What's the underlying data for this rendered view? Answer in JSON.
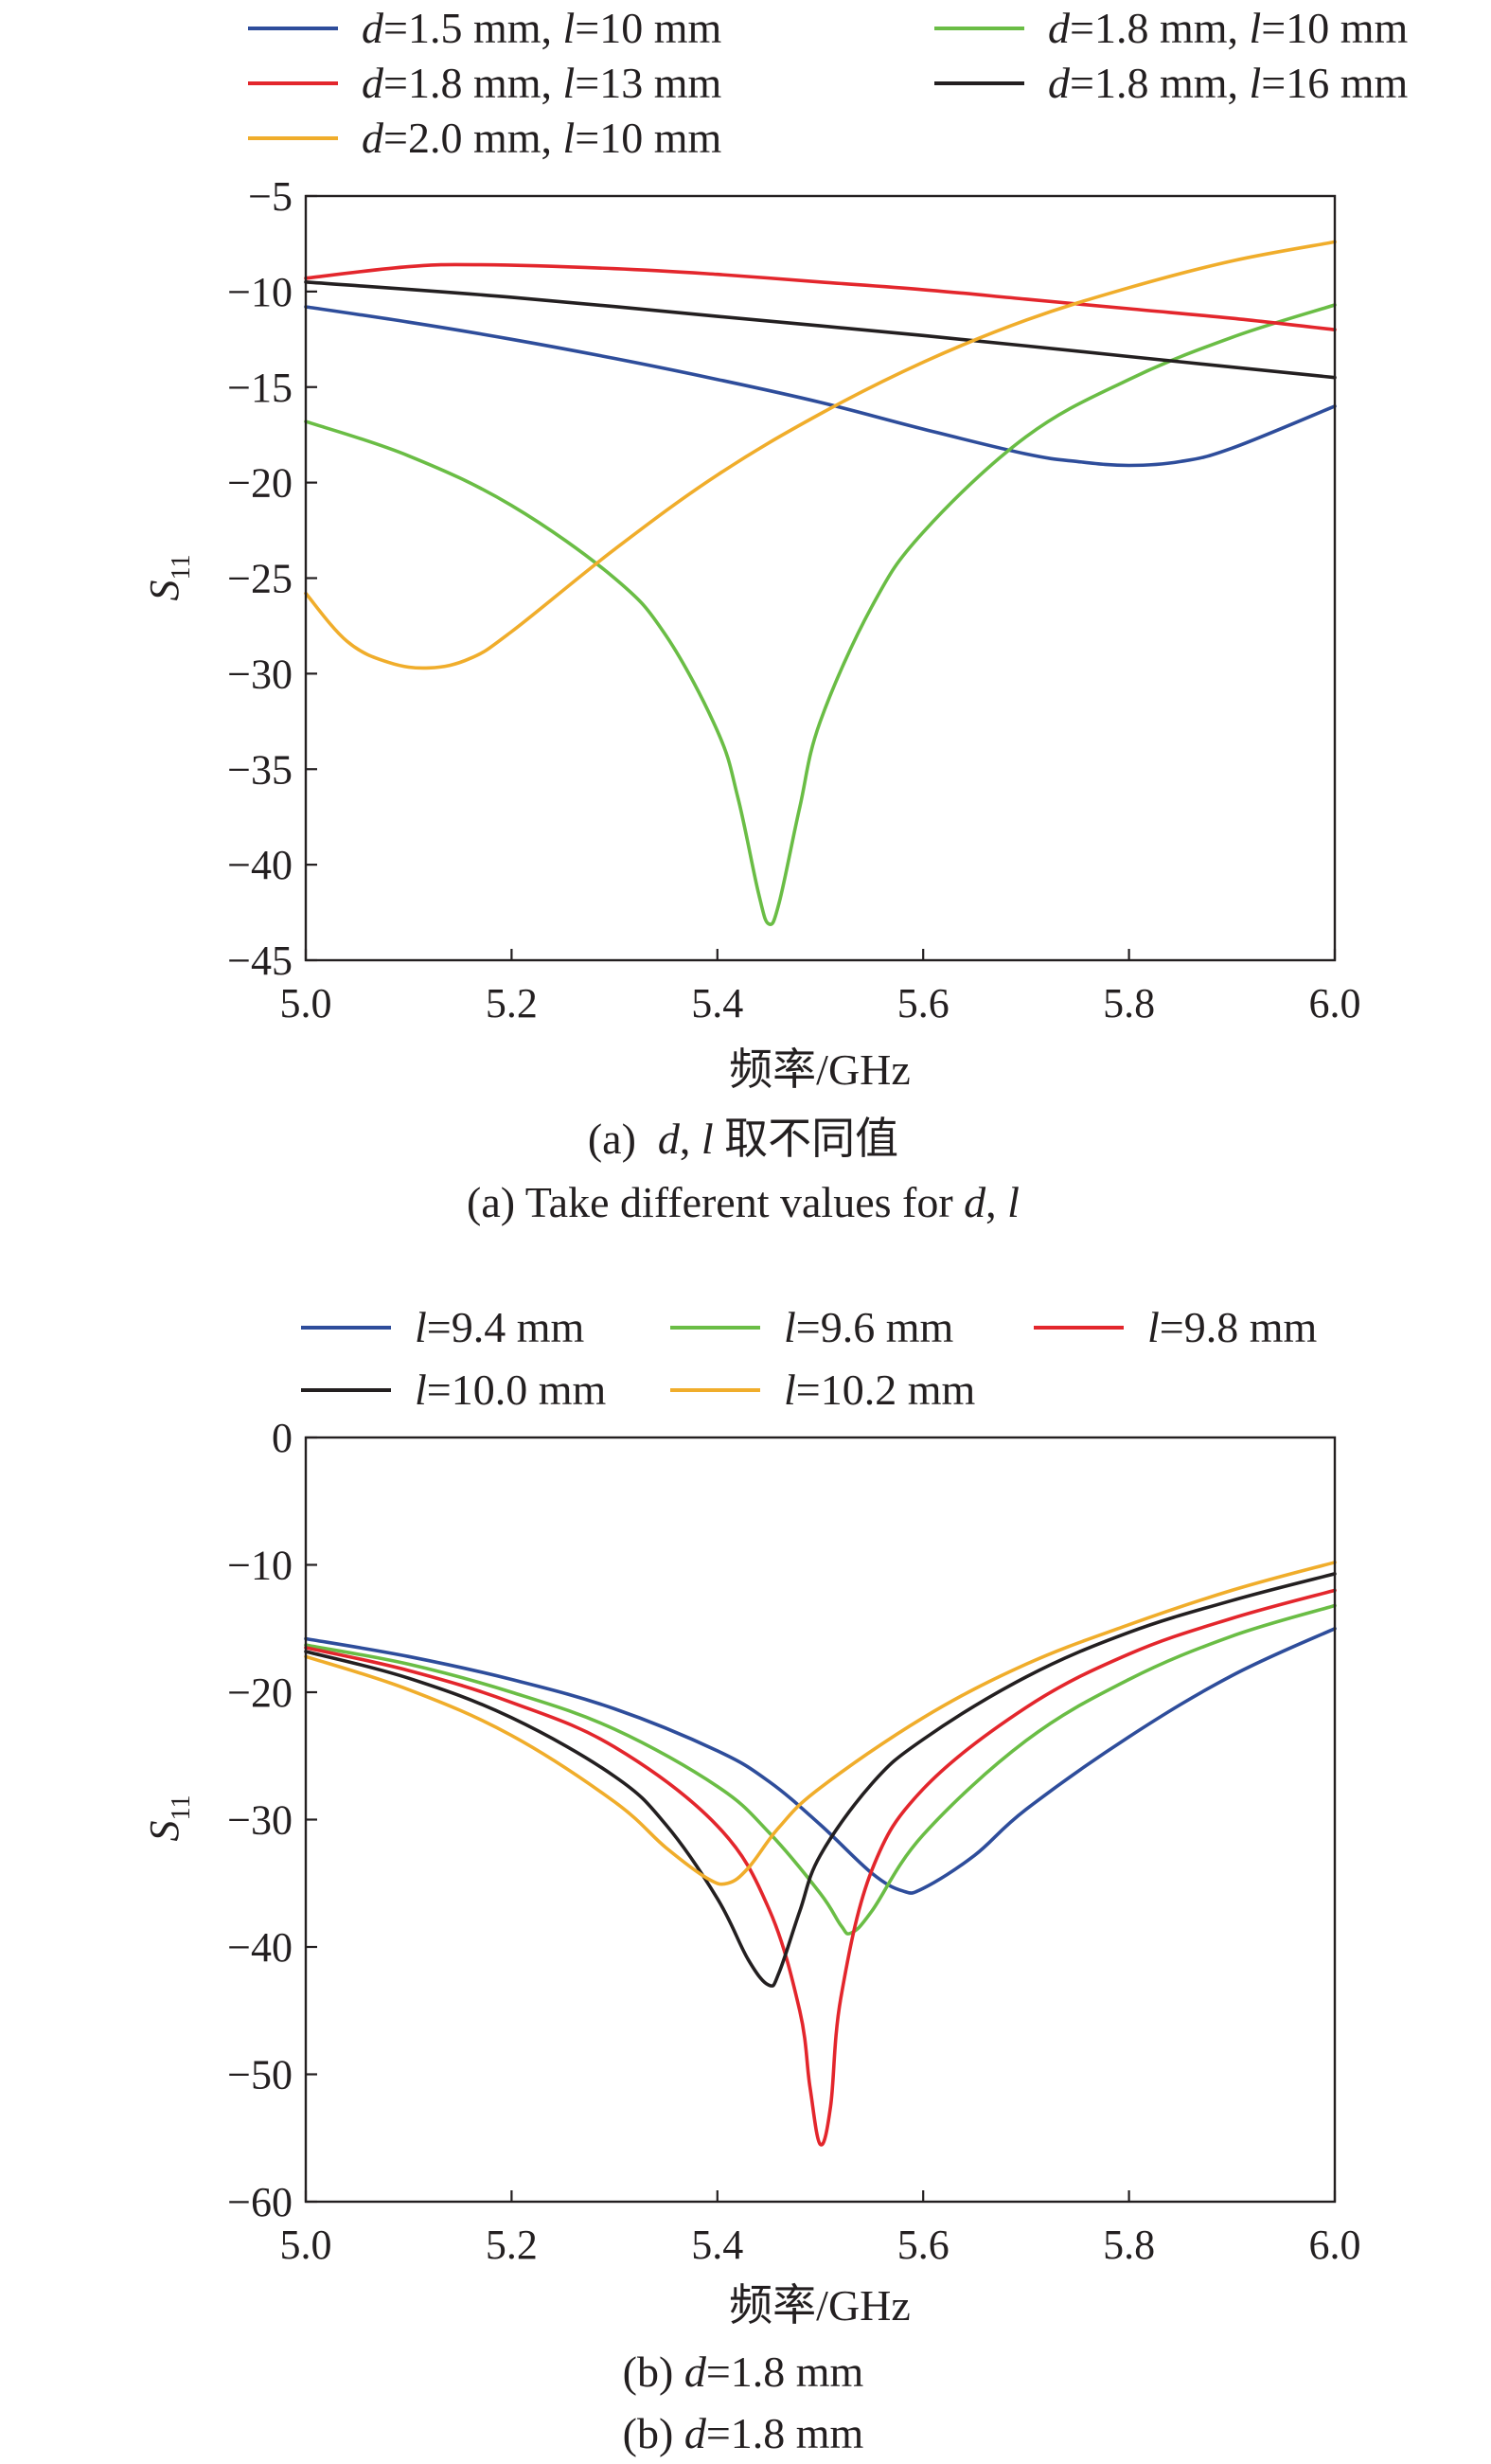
{
  "chart_data": [
    {
      "type": "line",
      "title": "",
      "xlabel": "频率/GHz",
      "ylabel": "S11",
      "xlim": [
        5.0,
        6.0
      ],
      "ylim": [
        -45,
        -5
      ],
      "xticks": [
        5.0,
        5.2,
        5.4,
        5.6,
        5.8,
        6.0
      ],
      "yticks": [
        -5,
        -10,
        -15,
        -20,
        -25,
        -30,
        -35,
        -40,
        -45
      ],
      "xtick_labels": [
        "5.0",
        "5.2",
        "5.4",
        "5.6",
        "5.8",
        "6.0"
      ],
      "ytick_labels": [
        "−5",
        "−10",
        "−15",
        "−20",
        "−25",
        "−30",
        "−35",
        "−40",
        "−45"
      ],
      "legend_position": "top",
      "caption_cn": "(a)  d, l 取不同值",
      "caption_en": "(a) Take different values for d, l",
      "series": [
        {
          "name": "d=1.5 mm, l=10 mm",
          "color": "#2e4d9b",
          "x": [
            5.0,
            5.1,
            5.2,
            5.3,
            5.4,
            5.5,
            5.6,
            5.7,
            5.75,
            5.8,
            5.85,
            5.9,
            6.0
          ],
          "y": [
            -10.8,
            -11.6,
            -12.5,
            -13.5,
            -14.6,
            -15.8,
            -17.2,
            -18.5,
            -18.9,
            -19.1,
            -18.9,
            -18.2,
            -16.0
          ]
        },
        {
          "name": "d=1.8 mm, l=10 mm",
          "color": "#6abd45",
          "x": [
            5.0,
            5.1,
            5.2,
            5.3,
            5.35,
            5.4,
            5.42,
            5.44,
            5.45,
            5.46,
            5.48,
            5.5,
            5.55,
            5.6,
            5.7,
            5.8,
            5.9,
            6.0
          ],
          "y": [
            -16.8,
            -18.6,
            -21.2,
            -25.0,
            -28.0,
            -33.0,
            -36.5,
            -41.5,
            -43.1,
            -42.0,
            -37.0,
            -32.5,
            -26.5,
            -22.6,
            -17.6,
            -14.6,
            -12.4,
            -10.7
          ]
        },
        {
          "name": "d=1.8 mm, l=13 mm",
          "color": "#e3262c",
          "x": [
            5.0,
            5.1,
            5.17,
            5.3,
            5.4,
            5.5,
            5.6,
            5.7,
            5.8,
            5.9,
            6.0
          ],
          "y": [
            -9.3,
            -8.7,
            -8.6,
            -8.8,
            -9.1,
            -9.5,
            -9.9,
            -10.4,
            -10.9,
            -11.4,
            -12.0
          ]
        },
        {
          "name": "d=1.8 mm, l=16 mm",
          "color": "#231f20",
          "x": [
            5.0,
            5.2,
            5.4,
            5.6,
            5.8,
            6.0
          ],
          "y": [
            -9.5,
            -10.3,
            -11.3,
            -12.3,
            -13.4,
            -14.5
          ]
        },
        {
          "name": "d=2.0 mm, l=10 mm",
          "color": "#f0ad2b",
          "x": [
            5.0,
            5.04,
            5.08,
            5.12,
            5.16,
            5.2,
            5.3,
            5.4,
            5.5,
            5.6,
            5.7,
            5.8,
            5.9,
            6.0
          ],
          "y": [
            -25.8,
            -28.3,
            -29.4,
            -29.7,
            -29.2,
            -27.8,
            -23.5,
            -19.6,
            -16.4,
            -13.7,
            -11.5,
            -9.8,
            -8.4,
            -7.4
          ]
        }
      ]
    },
    {
      "type": "line",
      "title": "",
      "xlabel": "频率/GHz",
      "ylabel": "S11",
      "xlim": [
        5.0,
        6.0
      ],
      "ylim": [
        -60,
        0
      ],
      "xticks": [
        5.0,
        5.2,
        5.4,
        5.6,
        5.8,
        6.0
      ],
      "yticks": [
        0,
        -10,
        -20,
        -30,
        -40,
        -50,
        -60
      ],
      "xtick_labels": [
        "5.0",
        "5.2",
        "5.4",
        "5.6",
        "5.8",
        "6.0"
      ],
      "ytick_labels": [
        "0",
        "−10",
        "−20",
        "−30",
        "−40",
        "−50",
        "−60"
      ],
      "legend_position": "top",
      "caption_cn": "(b) d=1.8 mm",
      "caption_en": "(b) d=1.8 mm",
      "series": [
        {
          "name": "l=9.4 mm",
          "color": "#2e4d9b",
          "x": [
            5.0,
            5.1,
            5.2,
            5.3,
            5.4,
            5.45,
            5.5,
            5.55,
            5.58,
            5.6,
            5.65,
            5.7,
            5.8,
            5.9,
            6.0
          ],
          "y": [
            -15.8,
            -17.2,
            -19.0,
            -21.3,
            -24.6,
            -27.0,
            -30.4,
            -34.2,
            -35.6,
            -35.4,
            -32.8,
            -29.2,
            -23.5,
            -18.7,
            -15.0
          ]
        },
        {
          "name": "l=9.6 mm",
          "color": "#6abd45",
          "x": [
            5.0,
            5.1,
            5.2,
            5.3,
            5.4,
            5.45,
            5.5,
            5.52,
            5.53,
            5.55,
            5.6,
            5.7,
            5.8,
            5.9,
            6.0
          ],
          "y": [
            -16.3,
            -17.8,
            -20.0,
            -22.9,
            -27.4,
            -31.0,
            -35.8,
            -38.3,
            -38.9,
            -37.2,
            -31.2,
            -23.8,
            -19.0,
            -15.6,
            -13.2
          ]
        },
        {
          "name": "l=9.8 mm",
          "color": "#e3262c",
          "x": [
            5.0,
            5.1,
            5.2,
            5.3,
            5.4,
            5.45,
            5.48,
            5.49,
            5.5,
            5.51,
            5.52,
            5.55,
            5.6,
            5.7,
            5.8,
            5.9,
            6.0
          ],
          "y": [
            -16.5,
            -18.3,
            -20.8,
            -24.3,
            -30.5,
            -37.0,
            -45.0,
            -51.0,
            -55.5,
            -52.5,
            -44.0,
            -34.0,
            -27.6,
            -21.2,
            -17.0,
            -14.2,
            -12.0
          ]
        },
        {
          "name": "l=10.0 mm",
          "color": "#231f20",
          "x": [
            5.0,
            5.1,
            5.2,
            5.3,
            5.35,
            5.4,
            5.43,
            5.45,
            5.46,
            5.48,
            5.5,
            5.55,
            5.6,
            5.7,
            5.8,
            5.9,
            6.0
          ],
          "y": [
            -16.8,
            -18.9,
            -22.0,
            -26.6,
            -30.4,
            -36.2,
            -41.0,
            -43.0,
            -42.0,
            -37.2,
            -32.8,
            -27.2,
            -23.7,
            -18.8,
            -15.3,
            -12.8,
            -10.7
          ]
        },
        {
          "name": "l=10.2 mm",
          "color": "#f0ad2b",
          "x": [
            5.0,
            5.1,
            5.2,
            5.3,
            5.35,
            5.39,
            5.41,
            5.43,
            5.46,
            5.5,
            5.6,
            5.7,
            5.8,
            5.9,
            6.0
          ],
          "y": [
            -17.2,
            -19.8,
            -23.4,
            -28.6,
            -32.2,
            -34.6,
            -35.0,
            -33.8,
            -30.6,
            -27.5,
            -22.0,
            -17.8,
            -14.7,
            -12.0,
            -9.8
          ]
        }
      ]
    }
  ]
}
